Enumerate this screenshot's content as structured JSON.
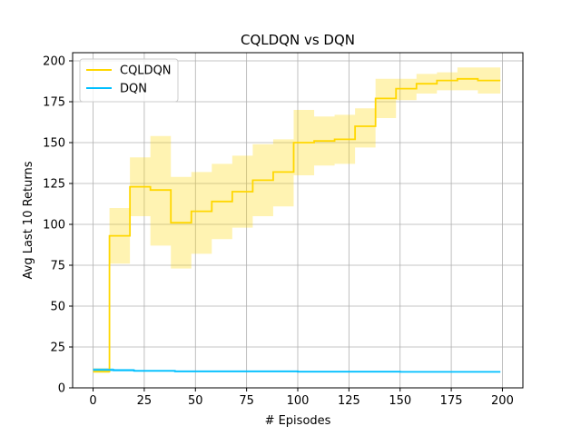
{
  "chart_data": {
    "type": "line",
    "title": "CQLDQN vs DQN",
    "xlabel": "# Episodes",
    "ylabel": "Avg Last 10 Returns",
    "xlim": [
      -10,
      210
    ],
    "ylim": [
      0,
      205
    ],
    "xticks": [
      0,
      25,
      50,
      75,
      100,
      125,
      150,
      175,
      200
    ],
    "yticks": [
      0,
      25,
      50,
      75,
      100,
      125,
      150,
      175,
      200
    ],
    "grid": true,
    "legend_position": "top-left",
    "series": [
      {
        "name": "CQLDQN",
        "color": "#FFD700",
        "band_color": "#FFD700",
        "steps": [
          {
            "x0": 0,
            "x1": 8,
            "mean": 10,
            "low": 9,
            "high": 12
          },
          {
            "x0": 8,
            "x1": 18,
            "mean": 93,
            "low": 76,
            "high": 110
          },
          {
            "x0": 18,
            "x1": 28,
            "mean": 123,
            "low": 105,
            "high": 141
          },
          {
            "x0": 28,
            "x1": 38,
            "mean": 121,
            "low": 87,
            "high": 154
          },
          {
            "x0": 38,
            "x1": 48,
            "mean": 101,
            "low": 73,
            "high": 129
          },
          {
            "x0": 48,
            "x1": 58,
            "mean": 108,
            "low": 82,
            "high": 132
          },
          {
            "x0": 58,
            "x1": 68,
            "mean": 114,
            "low": 91,
            "high": 137
          },
          {
            "x0": 68,
            "x1": 78,
            "mean": 120,
            "low": 98,
            "high": 142
          },
          {
            "x0": 78,
            "x1": 88,
            "mean": 127,
            "low": 105,
            "high": 149
          },
          {
            "x0": 88,
            "x1": 98,
            "mean": 132,
            "low": 111,
            "high": 152
          },
          {
            "x0": 98,
            "x1": 108,
            "mean": 150,
            "low": 130,
            "high": 170
          },
          {
            "x0": 108,
            "x1": 118,
            "mean": 151,
            "low": 136,
            "high": 166
          },
          {
            "x0": 118,
            "x1": 128,
            "mean": 152,
            "low": 137,
            "high": 167
          },
          {
            "x0": 128,
            "x1": 138,
            "mean": 160,
            "low": 147,
            "high": 171
          },
          {
            "x0": 138,
            "x1": 148,
            "mean": 177,
            "low": 165,
            "high": 189
          },
          {
            "x0": 148,
            "x1": 158,
            "mean": 183,
            "low": 176,
            "high": 189
          },
          {
            "x0": 158,
            "x1": 168,
            "mean": 186,
            "low": 180,
            "high": 192
          },
          {
            "x0": 168,
            "x1": 178,
            "mean": 188,
            "low": 182,
            "high": 193
          },
          {
            "x0": 178,
            "x1": 188,
            "mean": 189,
            "low": 182,
            "high": 196
          },
          {
            "x0": 188,
            "x1": 199,
            "mean": 188,
            "low": 180,
            "high": 196
          }
        ]
      },
      {
        "name": "DQN",
        "color": "#00BFFF",
        "band_color": "#00BFFF",
        "steps": [
          {
            "x0": 0,
            "x1": 10,
            "mean": 11,
            "low": 10,
            "high": 12
          },
          {
            "x0": 10,
            "x1": 20,
            "mean": 10.8,
            "low": 10,
            "high": 11.6
          },
          {
            "x0": 20,
            "x1": 40,
            "mean": 10.4,
            "low": 9.8,
            "high": 11
          },
          {
            "x0": 40,
            "x1": 100,
            "mean": 10.1,
            "low": 9.6,
            "high": 10.6
          },
          {
            "x0": 100,
            "x1": 150,
            "mean": 9.9,
            "low": 9.5,
            "high": 10.3
          },
          {
            "x0": 150,
            "x1": 199,
            "mean": 9.8,
            "low": 9.4,
            "high": 10.2
          }
        ]
      }
    ]
  }
}
